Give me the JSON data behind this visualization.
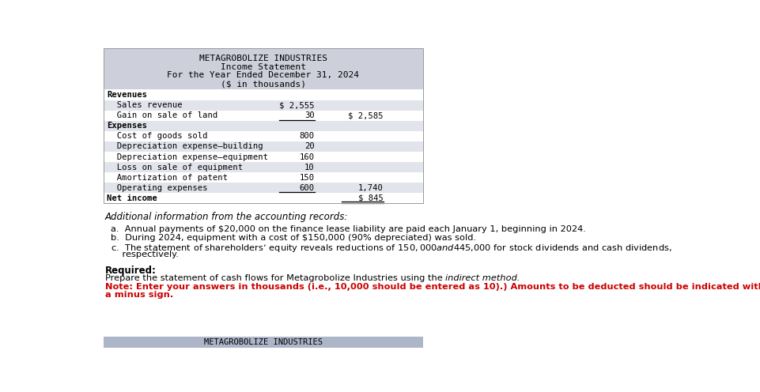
{
  "title_lines": [
    "METAGROBOLIZE INDUSTRIES",
    "Income Statement",
    "For the Year Ended December 31, 2024",
    "($ in thousands)"
  ],
  "header_bg": "#cdd0db",
  "table_bg_light": "#e2e4ec",
  "rows": [
    {
      "label": "Revenues",
      "col1": "",
      "col2": "",
      "bold": true,
      "indent": 0,
      "bg": "white"
    },
    {
      "label": "  Sales revenue",
      "col1": "$ 2,555",
      "col2": "",
      "bold": false,
      "indent": 0,
      "bg": "light"
    },
    {
      "label": "  Gain on sale of land",
      "col1": "30",
      "col2": "$ 2,585",
      "bold": false,
      "indent": 0,
      "bg": "white",
      "underline_col1": true
    },
    {
      "label": "Expenses",
      "col1": "",
      "col2": "",
      "bold": true,
      "indent": 0,
      "bg": "light"
    },
    {
      "label": "  Cost of goods sold",
      "col1": "800",
      "col2": "",
      "bold": false,
      "indent": 0,
      "bg": "white"
    },
    {
      "label": "  Depreciation expense–building",
      "col1": "20",
      "col2": "",
      "bold": false,
      "indent": 0,
      "bg": "light"
    },
    {
      "label": "  Depreciation expense–equipment",
      "col1": "160",
      "col2": "",
      "bold": false,
      "indent": 0,
      "bg": "white"
    },
    {
      "label": "  Loss on sale of equipment",
      "col1": "10",
      "col2": "",
      "bold": false,
      "indent": 0,
      "bg": "light"
    },
    {
      "label": "  Amortization of patent",
      "col1": "150",
      "col2": "",
      "bold": false,
      "indent": 0,
      "bg": "white"
    },
    {
      "label": "  Operating expenses",
      "col1": "600",
      "col2": "1,740",
      "bold": false,
      "indent": 0,
      "bg": "light",
      "underline_col1": true
    },
    {
      "label": "Net income",
      "col1": "",
      "col2": "$ 845",
      "bold": true,
      "indent": 0,
      "bg": "white",
      "double_underline_col2": true
    }
  ],
  "add_info_title": "Additional information from the accounting records:",
  "add_info_items": [
    "a.  Annual payments of $20,000 on the finance lease liability are paid each January 1, beginning in 2024.",
    "b.  During 2024, equipment with a cost of $150,000 (90% depreciated) was sold.",
    "c.  The statement of shareholders’ equity reveals reductions of $150,000 and $445,000 for stock dividends and cash dividends,",
    "    respectively."
  ],
  "required_label": "Required:",
  "required_normal": "Prepare the statement of cash flows for Metagrobolize Industries using the ",
  "required_italic": "indirect method.",
  "note_line1": "Note: Enter your answers in thousands (i.e., 10,000 should be entered as 10).) Amounts to be deducted should be indicated with",
  "note_line2": "a minus sign.",
  "bottom_bg": "#adb5c9",
  "bottom_text": "METAGROBOLIZE INDUSTRIES"
}
